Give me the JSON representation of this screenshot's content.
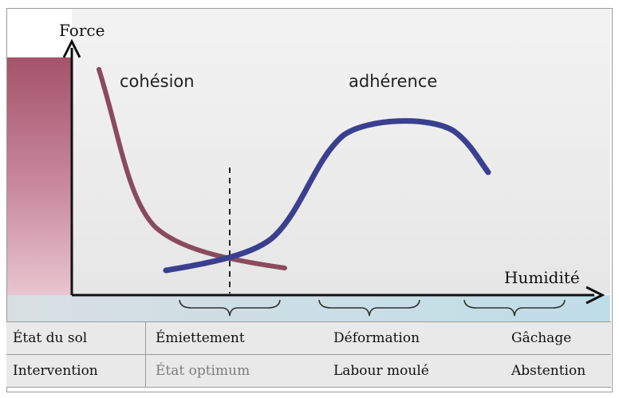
{
  "diagram": {
    "y_axis_label": "Force",
    "x_axis_label": "Humidité",
    "curves": [
      {
        "name": "cohésion",
        "color": "#8a4b5e"
      },
      {
        "name": "adhérence",
        "color": "#3b3f8f"
      }
    ]
  },
  "table": {
    "rows": [
      {
        "header": "État du sol",
        "cells": [
          "Émiettement",
          "Déformation",
          "Gâchage"
        ]
      },
      {
        "header": "Intervention",
        "cells": [
          "État optimum",
          "Labour moulé",
          "Abstention"
        ]
      }
    ]
  }
}
